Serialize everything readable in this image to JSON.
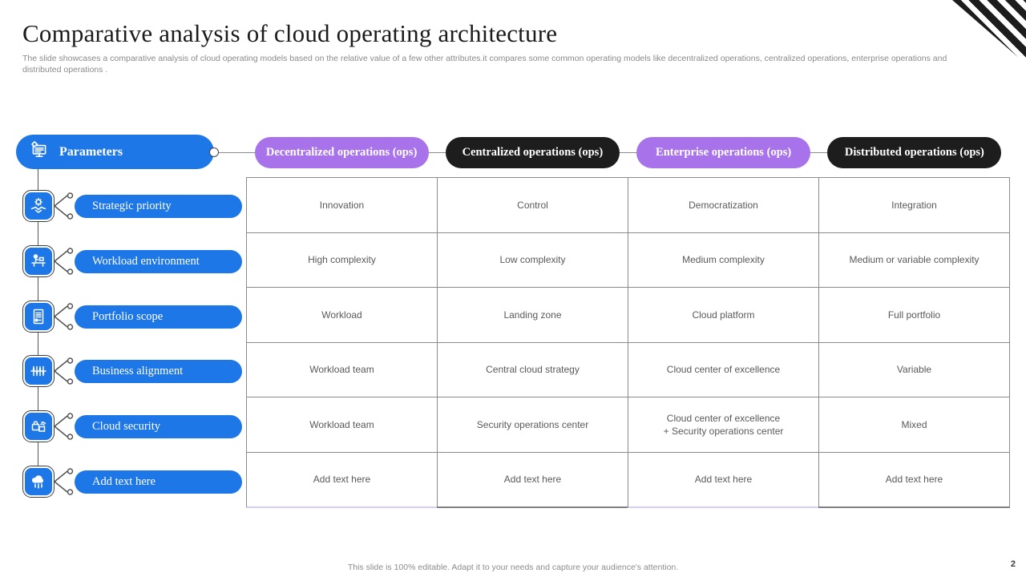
{
  "slide": {
    "title": "Comparative analysis of cloud operating architecture",
    "subtitle": "The slide showcases a comparative analysis of cloud operating models based on the relative value of a few other attributes.it compares some common operating models like decentralized operations, centralized operations, enterprise operations and distributed operations .",
    "footer": "This slide is 100% editable.  Adapt it to your needs and capture your audience's attention.",
    "page_number": "2"
  },
  "parameters": {
    "header": "Parameters",
    "header_icon": "monitor-gear-icon",
    "items": [
      {
        "label": "Strategic priority",
        "icon": "handshake-gear-icon"
      },
      {
        "label": "Workload environment",
        "icon": "person-desk-icon"
      },
      {
        "label": "Portfolio scope",
        "icon": "document-icon"
      },
      {
        "label": "Business alignment",
        "icon": "equalizer-icon"
      },
      {
        "label": "Cloud security",
        "icon": "lock-cloud-icon"
      },
      {
        "label": "Add text here",
        "icon": "cloud-network-icon"
      }
    ]
  },
  "columns": [
    {
      "header": "Decentralized operations (ops)",
      "theme": "purple",
      "cells": [
        "Innovation",
        "High complexity",
        "Workload",
        "Workload team",
        "Workload team",
        "Add text here"
      ]
    },
    {
      "header": "Centralized operations (ops)",
      "theme": "black",
      "cells": [
        "Control",
        "Low complexity",
        "Landing zone",
        "Central cloud strategy",
        "Security operations center",
        "Add text here"
      ]
    },
    {
      "header": "Enterprise operations (ops)",
      "theme": "purple",
      "cells": [
        "Democratization",
        "Medium complexity",
        "Cloud platform",
        "Cloud center of excellence",
        "Cloud center of excellence\n+ Security operations center",
        "Add text here"
      ]
    },
    {
      "header": "Distributed operations (ops)",
      "theme": "black",
      "cells": [
        "Integration",
        "Medium or variable complexity",
        "Full portfolio",
        "Variable",
        "Mixed",
        "Add text here"
      ]
    }
  ],
  "colors": {
    "accent_blue": "#1e77e6",
    "accent_purple": "#a873ea",
    "accent_black": "#1d1d1d",
    "table_border_gray": "#8a8a8a",
    "table_border_lavender": "#d9cdf0"
  }
}
